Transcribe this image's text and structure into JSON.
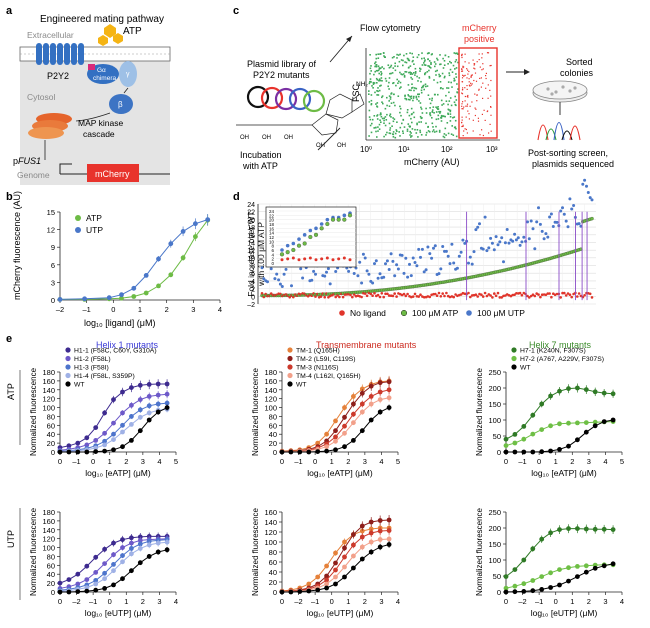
{
  "panels": {
    "a": {
      "label": "a",
      "title": "Engineered mating pathway",
      "extracellular": "Extracellular",
      "atp": "ATP",
      "receptor": "P2Y2",
      "chimera_line1": "Gα",
      "chimera_line2": "chimera",
      "beta": "β",
      "gamma": "γ",
      "cytosol": "Cytosol",
      "cascade_line1": "MAP kinase",
      "cascade_line2": "cascade",
      "promoter_prefix": "p",
      "promoter_gene": "FUS1",
      "genome": "Genome",
      "reporter": "mCherry"
    },
    "b": {
      "label": "b",
      "ylabel": "mCherry fluorescence (AU)",
      "xlabel": "log₁₀ [ligand] (μM)",
      "yticks": [
        "0",
        "3",
        "6",
        "9",
        "12",
        "15"
      ],
      "xticks": [
        "–2",
        "–1",
        "0",
        "1",
        "2",
        "3",
        "4"
      ],
      "legend": [
        "ATP",
        "UTP"
      ]
    },
    "c": {
      "label": "c",
      "library_line1": "Plasmid library of",
      "library_line2": "P2Y2 mutants",
      "incubation_line1": "Incubation",
      "incubation_line2": "with ATP",
      "flow": "Flow cytometry",
      "gate_line1": "mCherry",
      "gate_line2": "positive",
      "fsc": "FSC",
      "xaxis": "mCherry (AU)",
      "xticks": [
        "10⁰",
        "10¹",
        "10²",
        "10³"
      ],
      "sorted_line1": "Sorted",
      "sorted_line2": "colonies",
      "post_line1": "Post-sorting screen,",
      "post_line2": "plasmids sequenced",
      "nh2": "NH₂",
      "oh": "OH"
    },
    "d": {
      "label": "d",
      "ylabel_line1": "Fold increase over WT",
      "ylabel_line2": "with 100 μM ATP",
      "yticks": [
        "–2",
        "0",
        "2",
        "4",
        "6",
        "8",
        "10",
        "12",
        "14",
        "16",
        "18",
        "20",
        "22",
        "24"
      ],
      "inset_yticks": [
        "24",
        "22",
        "20",
        "18",
        "16",
        "14",
        "12",
        "10",
        "8",
        "6",
        "4",
        "2",
        "0"
      ],
      "legend": [
        "No ligand",
        "100 μM ATP",
        "100 μM UTP"
      ]
    },
    "e": {
      "label": "e",
      "row_labels": [
        "ATP",
        "UTP"
      ],
      "ylabel": "Normalized fluorescence",
      "xlabel_atp": "log₁₀ [eATP] (μM)",
      "xlabel_utp": "log₁₀ [eUTP] (μM)",
      "col1": {
        "title": "Helix 1 mutants",
        "legend": [
          "H1-1 (F58C, C60Y, G310A)",
          "H1-2 (F58L)",
          "H1-3 (F58I)",
          "H1-4 (F58L, S359P)",
          "WT"
        ],
        "atp_xticks": [
          "0",
          "–1",
          "0",
          "1",
          "2",
          "3",
          "4",
          "5"
        ],
        "utp_xticks": [
          "0",
          "–2",
          "–1",
          "0",
          "1",
          "2",
          "3",
          "4"
        ],
        "yticks": [
          "0",
          "20",
          "40",
          "60",
          "80",
          "100",
          "120",
          "140",
          "160",
          "180"
        ]
      },
      "col2": {
        "title": "Transmembrane mutants",
        "legend": [
          "TM-1 (Q165H)",
          "TM-2 (L59I, C119S)",
          "TM-3 (N116S)",
          "TM-4 (L162I, Q165H)",
          "WT"
        ],
        "atp_xticks": [
          "0",
          "–1",
          "0",
          "1",
          "2",
          "3",
          "4",
          "5"
        ],
        "utp_xticks": [
          "0",
          "–2",
          "–1",
          "0",
          "1",
          "2",
          "3",
          "4"
        ],
        "atp_yticks": [
          "0",
          "20",
          "40",
          "60",
          "80",
          "100",
          "120",
          "140",
          "160",
          "180"
        ],
        "utp_yticks": [
          "0",
          "20",
          "40",
          "60",
          "80",
          "100",
          "120",
          "140",
          "160"
        ]
      },
      "col3": {
        "title": "Helix 7 mutants",
        "legend": [
          "H7-1 (K240N, F307S)",
          "H7-2 (A767, A229V, F307S)",
          "WT"
        ],
        "atp_xticks": [
          "0",
          "–1",
          "0",
          "1",
          "2",
          "3",
          "4",
          "5"
        ],
        "utp_xticks": [
          "0",
          "–2",
          "–1",
          "0",
          "1",
          "2",
          "3",
          "4"
        ],
        "atp_yticks": [
          "0",
          "50",
          "100",
          "150",
          "200",
          "250"
        ],
        "utp_yticks": [
          "0",
          "50",
          "100",
          "150",
          "200",
          "250"
        ]
      }
    }
  },
  "colors": {
    "atp_green": "#6dbb45",
    "utp_blue": "#4a77c9",
    "nolig_red": "#e0352b",
    "mcherry": "#e8332c",
    "receptor": "#3370c2",
    "h1": [
      "#3d2a8f",
      "#6d59c9",
      "#4d74cc",
      "#9fb1e6",
      "#000000"
    ],
    "tm": [
      "#e5813a",
      "#8e1e1a",
      "#cc3a2c",
      "#f2a08a",
      "#000000"
    ],
    "h7": [
      "#2f7a26",
      "#6ebf45",
      "#000000"
    ]
  },
  "chart_data": [
    {
      "id": "b",
      "type": "line",
      "xlabel": "log₁₀ [ligand] (μM)",
      "ylabel": "mCherry fluorescence (AU)",
      "xlim": [
        -2,
        4.5
      ],
      "ylim": [
        0,
        15
      ],
      "series": [
        {
          "name": "ATP",
          "x": [
            -2,
            -1,
            0,
            0.5,
            1,
            1.5,
            2,
            2.5,
            3,
            3.5,
            4
          ],
          "y": [
            0.1,
            0.1,
            0.2,
            0.3,
            0.6,
            1.2,
            2.4,
            4.3,
            7.2,
            10.8,
            13.6
          ]
        },
        {
          "name": "UTP",
          "x": [
            -2,
            -1,
            0,
            0.5,
            1,
            1.5,
            2,
            2.5,
            3,
            3.5,
            4
          ],
          "y": [
            0.1,
            0.2,
            0.4,
            0.9,
            2.0,
            4.2,
            7.0,
            9.6,
            11.7,
            13.0,
            13.7
          ]
        }
      ]
    },
    {
      "id": "e-helix1-atp",
      "type": "line",
      "xlabel": "log₁₀ [eATP] (μM)",
      "ylabel": "Normalized fluorescence",
      "xlim": [
        -1.5,
        5
      ],
      "ylim": [
        0,
        180
      ],
      "x": [
        -1.5,
        -1,
        -0.5,
        0,
        0.5,
        1,
        1.5,
        2,
        2.5,
        3,
        3.5,
        4,
        4.5
      ],
      "series": [
        {
          "name": "H1-1 (F58C, C60Y, G310A)",
          "values": [
            10,
            14,
            20,
            32,
            55,
            88,
            118,
            135,
            145,
            150,
            152,
            153,
            153
          ]
        },
        {
          "name": "H1-2 (F58L)",
          "values": [
            4,
            6,
            10,
            16,
            26,
            42,
            65,
            88,
            105,
            118,
            125,
            128,
            130
          ]
        },
        {
          "name": "H1-3 (F58I)",
          "values": [
            2,
            3,
            5,
            8,
            14,
            24,
            40,
            60,
            80,
            95,
            104,
            108,
            110
          ]
        },
        {
          "name": "H1-4 (F58L, S359P)",
          "values": [
            1,
            2,
            3,
            5,
            9,
            16,
            28,
            45,
            62,
            78,
            88,
            94,
            96
          ]
        },
        {
          "name": "WT",
          "values": [
            0,
            0,
            0,
            0,
            1,
            2,
            5,
            12,
            26,
            48,
            72,
            90,
            100
          ]
        }
      ]
    },
    {
      "id": "e-tm-atp",
      "type": "line",
      "xlabel": "log₁₀ [eATP] (μM)",
      "ylabel": "Normalized fluorescence",
      "xlim": [
        -1.5,
        5
      ],
      "ylim": [
        0,
        180
      ],
      "x": [
        -1.5,
        -1,
        -0.5,
        0,
        0.5,
        1,
        1.5,
        2,
        2.5,
        3,
        3.5,
        4,
        4.5
      ],
      "series": [
        {
          "name": "TM-1 (Q165H)",
          "values": [
            2,
            3,
            5,
            10,
            20,
            40,
            70,
            100,
            125,
            142,
            152,
            158,
            160
          ]
        },
        {
          "name": "TM-2 (L59I, C119S)",
          "values": [
            1,
            2,
            3,
            6,
            12,
            25,
            48,
            78,
            108,
            132,
            148,
            156,
            158
          ]
        },
        {
          "name": "TM-3 (N116S)",
          "values": [
            1,
            1,
            2,
            4,
            9,
            18,
            34,
            58,
            85,
            108,
            125,
            135,
            140
          ]
        },
        {
          "name": "TM-4 (L162I, Q165H)",
          "values": [
            1,
            1,
            2,
            3,
            6,
            12,
            24,
            42,
            66,
            90,
            108,
            118,
            122
          ]
        },
        {
          "name": "WT",
          "values": [
            0,
            0,
            0,
            0,
            1,
            2,
            5,
            12,
            26,
            48,
            72,
            90,
            100
          ]
        }
      ]
    },
    {
      "id": "e-helix7-atp",
      "type": "line",
      "xlabel": "log₁₀ [eATP] (μM)",
      "ylabel": "Normalized fluorescence",
      "xlim": [
        -1.5,
        5
      ],
      "ylim": [
        0,
        250
      ],
      "x": [
        -1.5,
        -1,
        -0.5,
        0,
        0.5,
        1,
        1.5,
        2,
        2.5,
        3,
        3.5,
        4,
        4.5
      ],
      "series": [
        {
          "name": "H7-1 (K240N, F307S)",
          "values": [
            40,
            55,
            80,
            115,
            150,
            175,
            190,
            198,
            200,
            195,
            188,
            184,
            182
          ]
        },
        {
          "name": "H7-2 (A767, A229V, F307S)",
          "values": [
            20,
            28,
            40,
            56,
            70,
            82,
            88,
            90,
            91,
            92,
            93,
            94,
            95
          ]
        },
        {
          "name": "WT",
          "values": [
            0,
            0,
            0,
            0,
            1,
            3,
            8,
            18,
            38,
            62,
            82,
            95,
            100
          ]
        }
      ]
    },
    {
      "id": "e-helix1-utp",
      "type": "line",
      "xlabel": "log₁₀ [eUTP] (μM)",
      "ylabel": "Normalized fluorescence",
      "xlim": [
        -2.5,
        4
      ],
      "ylim": [
        0,
        180
      ],
      "x": [
        -2.5,
        -2,
        -1.5,
        -1,
        -0.5,
        0,
        0.5,
        1,
        1.5,
        2,
        2.5,
        3,
        3.5
      ],
      "series": [
        {
          "name": "H1-1 (F58C, C60Y, G310A)",
          "values": [
            20,
            28,
            40,
            58,
            78,
            96,
            110,
            118,
            122,
            124,
            125,
            125,
            125
          ]
        },
        {
          "name": "H1-2 (F58L)",
          "values": [
            8,
            12,
            18,
            28,
            44,
            64,
            84,
            100,
            110,
            116,
            118,
            119,
            120
          ]
        },
        {
          "name": "H1-3 (F58I)",
          "values": [
            4,
            6,
            10,
            16,
            26,
            42,
            62,
            82,
            98,
            108,
            114,
            116,
            118
          ]
        },
        {
          "name": "H1-4 (F58L, S359P)",
          "values": [
            2,
            3,
            6,
            10,
            18,
            30,
            48,
            68,
            86,
            98,
            106,
            110,
            112
          ]
        },
        {
          "name": "WT",
          "values": [
            0,
            0,
            1,
            2,
            4,
            8,
            16,
            30,
            48,
            66,
            80,
            90,
            95
          ]
        }
      ]
    },
    {
      "id": "e-tm-utp",
      "type": "line",
      "xlabel": "log₁₀ [eUTP] (μM)",
      "ylabel": "Normalized fluorescence",
      "xlim": [
        -2.5,
        4
      ],
      "ylim": [
        0,
        160
      ],
      "x": [
        -2.5,
        -2,
        -1.5,
        -1,
        -0.5,
        0,
        0.5,
        1,
        1.5,
        2,
        2.5,
        3,
        3.5
      ],
      "series": [
        {
          "name": "TM-1 (Q165H)",
          "values": [
            2,
            4,
            8,
            16,
            30,
            52,
            78,
            100,
            115,
            122,
            126,
            128,
            128
          ]
        },
        {
          "name": "TM-2 (L59I, C119S)",
          "values": [
            1,
            2,
            4,
            8,
            16,
            32,
            58,
            88,
            115,
            132,
            140,
            143,
            144
          ]
        },
        {
          "name": "TM-3 (N116S)",
          "values": [
            1,
            2,
            3,
            6,
            12,
            24,
            44,
            70,
            94,
            110,
            118,
            122,
            123
          ]
        },
        {
          "name": "TM-4 (L162I, Q165H)",
          "values": [
            1,
            1,
            2,
            4,
            8,
            16,
            30,
            50,
            72,
            90,
            100,
            105,
            106
          ]
        },
        {
          "name": "WT",
          "values": [
            0,
            0,
            1,
            2,
            4,
            8,
            16,
            30,
            48,
            66,
            80,
            90,
            95
          ]
        }
      ]
    },
    {
      "id": "e-helix7-utp",
      "type": "line",
      "xlabel": "log₁₀ [eUTP] (μM)",
      "ylabel": "Normalized fluorescence",
      "xlim": [
        -2.5,
        4
      ],
      "ylim": [
        0,
        250
      ],
      "x": [
        -2.5,
        -2,
        -1.5,
        -1,
        -0.5,
        0,
        0.5,
        1,
        1.5,
        2,
        2.5,
        3,
        3.5
      ],
      "series": [
        {
          "name": "H7-1 (K240N, F307S)",
          "values": [
            48,
            70,
            100,
            135,
            165,
            185,
            195,
            198,
            198,
            197,
            196,
            196,
            195
          ]
        },
        {
          "name": "H7-2 (A767, A229V, F307S)",
          "values": [
            12,
            18,
            26,
            36,
            48,
            60,
            70,
            76,
            80,
            82,
            84,
            85,
            85
          ]
        },
        {
          "name": "WT",
          "values": [
            0,
            1,
            2,
            4,
            8,
            14,
            22,
            34,
            48,
            62,
            74,
            82,
            88
          ]
        }
      ]
    }
  ]
}
